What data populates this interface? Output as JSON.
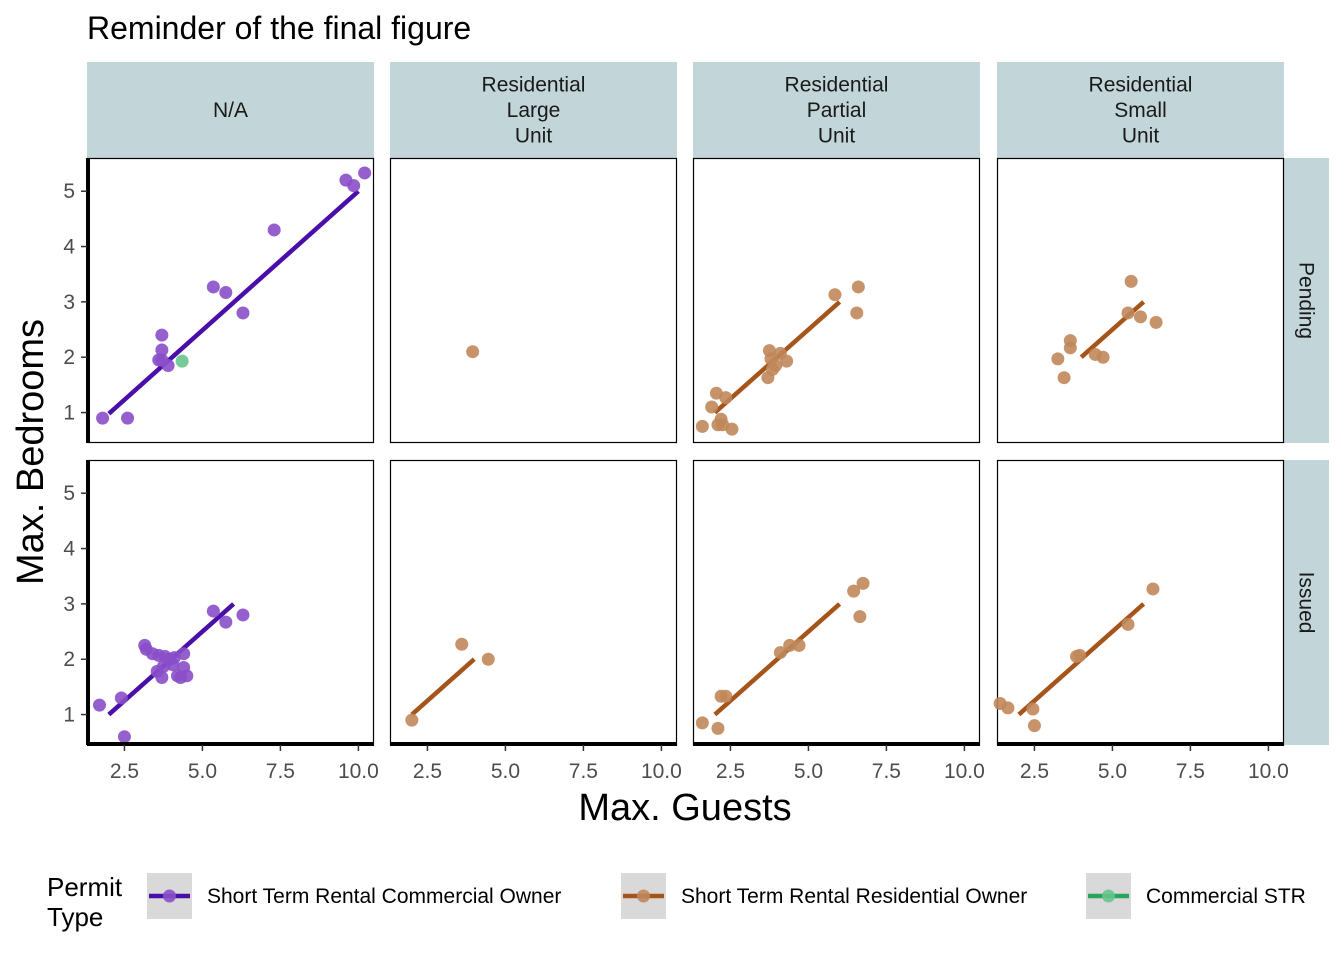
{
  "chart_data": {
    "type": "scatter",
    "title": "Reminder of the final figure",
    "xlabel": "Max. Guests",
    "ylabel": "Max. Bedrooms",
    "xlim": [
      1.3,
      10.5
    ],
    "ylim": [
      0.45,
      5.6
    ],
    "x_ticks": [
      "2.5",
      "5.0",
      "7.5",
      "10.0"
    ],
    "x_tick_values": [
      2.5,
      5.0,
      7.5,
      10.0
    ],
    "y_ticks": [
      "1",
      "2",
      "3",
      "4",
      "5"
    ],
    "y_tick_values": [
      1,
      2,
      3,
      4,
      5
    ],
    "grid": false,
    "facet_columns": [
      {
        "key": "na",
        "label_lines": [
          "N/A"
        ]
      },
      {
        "key": "large",
        "label_lines": [
          "Residential",
          "Large",
          "Unit"
        ]
      },
      {
        "key": "partial",
        "label_lines": [
          "Residential",
          "Partial",
          "Unit"
        ]
      },
      {
        "key": "small",
        "label_lines": [
          "Residential",
          "Small",
          "Unit"
        ]
      }
    ],
    "facet_rows": [
      {
        "key": "pending",
        "label": "Pending"
      },
      {
        "key": "issued",
        "label": "Issued"
      }
    ],
    "legend": {
      "title_lines": [
        "Permit",
        "Type"
      ],
      "position": "bottom",
      "entries": [
        {
          "name": "Short Term Rental Commercial Owner",
          "color": "#4a0fa8"
        },
        {
          "name": "Short Term Rental Residential Owner",
          "color": "#a5541a"
        },
        {
          "name": "Commercial STR",
          "color": "#2ca25f"
        }
      ]
    },
    "colors": {
      "commercial_owner_point": "#8a4fc9",
      "residential_owner_point": "#c0875a",
      "commercial_str_point": "#66c48c",
      "commercial_owner_line": "#4a0fa8",
      "residential_owner_line": "#a5541a",
      "strip_fill": "#c2d5d8"
    },
    "panels": [
      {
        "row": "pending",
        "col": "na",
        "points": [
          {
            "x": 1.8,
            "y": 0.9,
            "s": 0
          },
          {
            "x": 2.6,
            "y": 0.9,
            "s": 0
          },
          {
            "x": 3.6,
            "y": 1.95,
            "s": 0
          },
          {
            "x": 3.7,
            "y": 1.95,
            "s": 0
          },
          {
            "x": 3.7,
            "y": 2.13,
            "s": 0
          },
          {
            "x": 3.7,
            "y": 2.4,
            "s": 0
          },
          {
            "x": 3.9,
            "y": 1.85,
            "s": 0
          },
          {
            "x": 4.35,
            "y": 1.93,
            "s": 2
          },
          {
            "x": 5.35,
            "y": 3.27,
            "s": 0
          },
          {
            "x": 5.75,
            "y": 3.17,
            "s": 0
          },
          {
            "x": 6.3,
            "y": 2.8,
            "s": 0
          },
          {
            "x": 7.3,
            "y": 4.3,
            "s": 0
          },
          {
            "x": 9.6,
            "y": 5.2,
            "s": 0
          },
          {
            "x": 9.85,
            "y": 5.1,
            "s": 0
          },
          {
            "x": 10.2,
            "y": 5.33,
            "s": 0
          }
        ],
        "fits": [
          {
            "s": 0,
            "x1": 2.0,
            "y1": 0.98,
            "x2": 10.0,
            "y2": 5.0
          }
        ]
      },
      {
        "row": "pending",
        "col": "large",
        "points": [
          {
            "x": 3.95,
            "y": 2.1,
            "s": 1
          }
        ],
        "fits": []
      },
      {
        "row": "pending",
        "col": "partial",
        "points": [
          {
            "x": 1.6,
            "y": 0.75,
            "s": 1
          },
          {
            "x": 1.9,
            "y": 1.1,
            "s": 1
          },
          {
            "x": 2.05,
            "y": 1.35,
            "s": 1
          },
          {
            "x": 2.1,
            "y": 0.78,
            "s": 1
          },
          {
            "x": 2.2,
            "y": 0.88,
            "s": 1
          },
          {
            "x": 2.25,
            "y": 0.78,
            "s": 1
          },
          {
            "x": 2.35,
            "y": 1.27,
            "s": 1
          },
          {
            "x": 2.55,
            "y": 0.7,
            "s": 1
          },
          {
            "x": 3.75,
            "y": 2.12,
            "s": 1
          },
          {
            "x": 3.8,
            "y": 1.97,
            "s": 1
          },
          {
            "x": 3.85,
            "y": 1.78,
            "s": 1
          },
          {
            "x": 3.95,
            "y": 1.85,
            "s": 1
          },
          {
            "x": 4.1,
            "y": 2.07,
            "s": 1
          },
          {
            "x": 4.3,
            "y": 1.93,
            "s": 1
          },
          {
            "x": 3.7,
            "y": 1.63,
            "s": 1
          },
          {
            "x": 5.85,
            "y": 3.13,
            "s": 1
          },
          {
            "x": 6.6,
            "y": 3.27,
            "s": 1
          },
          {
            "x": 6.55,
            "y": 2.8,
            "s": 1
          }
        ],
        "fits": [
          {
            "s": 1,
            "x1": 2.0,
            "y1": 1.0,
            "x2": 6.0,
            "y2": 3.0
          }
        ]
      },
      {
        "row": "pending",
        "col": "small",
        "points": [
          {
            "x": 3.25,
            "y": 1.97,
            "s": 1
          },
          {
            "x": 3.45,
            "y": 1.63,
            "s": 1
          },
          {
            "x": 3.65,
            "y": 2.3,
            "s": 1
          },
          {
            "x": 3.65,
            "y": 2.17,
            "s": 1
          },
          {
            "x": 4.45,
            "y": 2.05,
            "s": 1
          },
          {
            "x": 4.7,
            "y": 2.0,
            "s": 1
          },
          {
            "x": 5.5,
            "y": 2.8,
            "s": 1
          },
          {
            "x": 5.6,
            "y": 3.37,
            "s": 1
          },
          {
            "x": 5.9,
            "y": 2.73,
            "s": 1
          },
          {
            "x": 6.4,
            "y": 2.63,
            "s": 1
          }
        ],
        "fits": [
          {
            "s": 1,
            "x1": 4.0,
            "y1": 2.0,
            "x2": 6.0,
            "y2": 3.0
          }
        ]
      },
      {
        "row": "issued",
        "col": "na",
        "points": [
          {
            "x": 1.7,
            "y": 1.17,
            "s": 0
          },
          {
            "x": 2.4,
            "y": 1.3,
            "s": 0
          },
          {
            "x": 2.5,
            "y": 0.6,
            "s": 0
          },
          {
            "x": 3.15,
            "y": 2.25,
            "s": 0
          },
          {
            "x": 3.2,
            "y": 2.18,
            "s": 0
          },
          {
            "x": 3.4,
            "y": 2.1,
            "s": 0
          },
          {
            "x": 3.55,
            "y": 1.78,
            "s": 0
          },
          {
            "x": 3.6,
            "y": 2.07,
            "s": 0
          },
          {
            "x": 3.7,
            "y": 1.67,
            "s": 0
          },
          {
            "x": 3.75,
            "y": 1.87,
            "s": 0
          },
          {
            "x": 3.8,
            "y": 2.05,
            "s": 0
          },
          {
            "x": 3.95,
            "y": 2.0,
            "s": 0
          },
          {
            "x": 4.05,
            "y": 1.9,
            "s": 0
          },
          {
            "x": 4.1,
            "y": 2.03,
            "s": 0
          },
          {
            "x": 4.2,
            "y": 1.7,
            "s": 0
          },
          {
            "x": 4.3,
            "y": 1.67,
            "s": 0
          },
          {
            "x": 4.4,
            "y": 2.1,
            "s": 0
          },
          {
            "x": 4.4,
            "y": 1.85,
            "s": 0
          },
          {
            "x": 4.5,
            "y": 1.7,
            "s": 0
          },
          {
            "x": 5.35,
            "y": 2.87,
            "s": 0
          },
          {
            "x": 5.75,
            "y": 2.67,
            "s": 0
          },
          {
            "x": 6.3,
            "y": 2.8,
            "s": 0
          }
        ],
        "fits": [
          {
            "s": 0,
            "x1": 2.0,
            "y1": 1.0,
            "x2": 6.0,
            "y2": 3.0
          }
        ]
      },
      {
        "row": "issued",
        "col": "large",
        "points": [
          {
            "x": 2.0,
            "y": 0.9,
            "s": 1
          },
          {
            "x": 3.6,
            "y": 2.27,
            "s": 1
          },
          {
            "x": 4.45,
            "y": 2.0,
            "s": 1
          }
        ],
        "fits": [
          {
            "s": 1,
            "x1": 2.0,
            "y1": 1.0,
            "x2": 4.0,
            "y2": 2.0
          }
        ]
      },
      {
        "row": "issued",
        "col": "partial",
        "points": [
          {
            "x": 1.6,
            "y": 0.85,
            "s": 1
          },
          {
            "x": 2.1,
            "y": 0.75,
            "s": 1
          },
          {
            "x": 2.2,
            "y": 1.33,
            "s": 1
          },
          {
            "x": 2.35,
            "y": 1.33,
            "s": 1
          },
          {
            "x": 4.1,
            "y": 2.12,
            "s": 1
          },
          {
            "x": 4.4,
            "y": 2.25,
            "s": 1
          },
          {
            "x": 4.7,
            "y": 2.25,
            "s": 1
          },
          {
            "x": 6.45,
            "y": 3.23,
            "s": 1
          },
          {
            "x": 6.75,
            "y": 3.37,
            "s": 1
          },
          {
            "x": 6.65,
            "y": 2.77,
            "s": 1
          }
        ],
        "fits": [
          {
            "s": 1,
            "x1": 2.0,
            "y1": 1.0,
            "x2": 6.0,
            "y2": 3.0
          }
        ]
      },
      {
        "row": "issued",
        "col": "small",
        "points": [
          {
            "x": 1.4,
            "y": 1.2,
            "s": 1
          },
          {
            "x": 1.65,
            "y": 1.12,
            "s": 1
          },
          {
            "x": 2.45,
            "y": 1.1,
            "s": 1
          },
          {
            "x": 2.5,
            "y": 0.8,
            "s": 1
          },
          {
            "x": 3.85,
            "y": 2.05,
            "s": 1
          },
          {
            "x": 3.95,
            "y": 2.07,
            "s": 1
          },
          {
            "x": 5.5,
            "y": 2.63,
            "s": 1
          },
          {
            "x": 6.3,
            "y": 3.27,
            "s": 1
          }
        ],
        "fits": [
          {
            "s": 1,
            "x1": 2.0,
            "y1": 1.0,
            "x2": 6.0,
            "y2": 3.0
          }
        ]
      }
    ]
  }
}
